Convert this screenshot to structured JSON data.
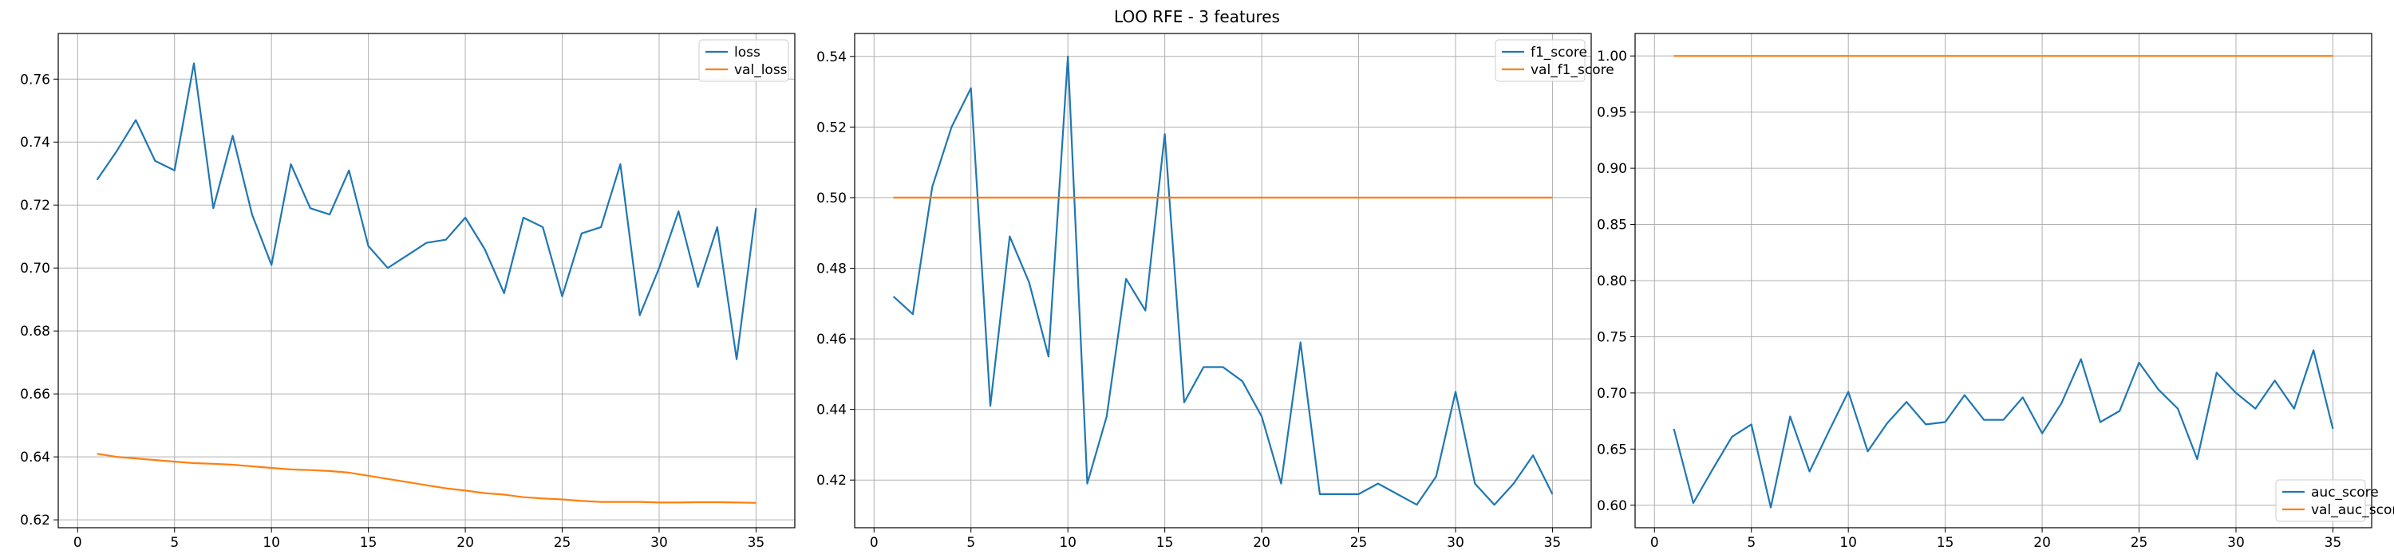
{
  "title": "LOO RFE - 3 features",
  "colors": {
    "series_1": "#1f77b4",
    "series_2": "#ff7f0e",
    "grid": "#b0b0b0"
  },
  "chart_data": [
    {
      "type": "line",
      "legend_position": "upper-right",
      "grid": true,
      "xlim": [
        -1,
        37
      ],
      "ylim": [
        0.6175,
        0.7745
      ],
      "xticks": [
        0,
        5,
        10,
        15,
        20,
        25,
        30,
        35
      ],
      "yticks": [
        0.62,
        0.64,
        0.66,
        0.68,
        0.7,
        0.72,
        0.74,
        0.76
      ],
      "ytick_decimals": 2,
      "x": [
        1,
        2,
        3,
        4,
        5,
        6,
        7,
        8,
        9,
        10,
        11,
        12,
        13,
        14,
        15,
        16,
        17,
        18,
        19,
        20,
        21,
        22,
        23,
        24,
        25,
        26,
        27,
        28,
        29,
        30,
        31,
        32,
        33,
        34,
        35
      ],
      "series": [
        {
          "name": "loss",
          "values": [
            0.728,
            0.737,
            0.747,
            0.734,
            0.731,
            0.765,
            0.719,
            0.742,
            0.717,
            0.701,
            0.733,
            0.719,
            0.717,
            0.731,
            0.707,
            0.7,
            0.704,
            0.708,
            0.709,
            0.716,
            0.706,
            0.692,
            0.716,
            0.713,
            0.691,
            0.711,
            0.713,
            0.733,
            0.685,
            0.7,
            0.718,
            0.694,
            0.713,
            0.671,
            0.719
          ]
        },
        {
          "name": "val_loss",
          "values": [
            0.641,
            0.64,
            0.6395,
            0.639,
            0.6385,
            0.638,
            0.6378,
            0.6375,
            0.637,
            0.6365,
            0.636,
            0.6358,
            0.6355,
            0.635,
            0.634,
            0.633,
            0.632,
            0.631,
            0.63,
            0.6293,
            0.6285,
            0.628,
            0.6272,
            0.6268,
            0.6265,
            0.626,
            0.6257,
            0.6257,
            0.6257,
            0.6255,
            0.6255,
            0.6256,
            0.6256,
            0.6255,
            0.6254
          ]
        }
      ]
    },
    {
      "type": "line",
      "legend_position": "upper-right",
      "grid": true,
      "xlim": [
        -1,
        37
      ],
      "ylim": [
        0.4065,
        0.5465
      ],
      "xticks": [
        0,
        5,
        10,
        15,
        20,
        25,
        30,
        35
      ],
      "yticks": [
        0.42,
        0.44,
        0.46,
        0.48,
        0.5,
        0.52,
        0.54
      ],
      "ytick_decimals": 2,
      "x": [
        1,
        2,
        3,
        4,
        5,
        6,
        7,
        8,
        9,
        10,
        11,
        12,
        13,
        14,
        15,
        16,
        17,
        18,
        19,
        20,
        21,
        22,
        23,
        24,
        25,
        26,
        27,
        28,
        29,
        30,
        31,
        32,
        33,
        34,
        35
      ],
      "series": [
        {
          "name": "f1_score",
          "values": [
            0.472,
            0.467,
            0.503,
            0.52,
            0.531,
            0.441,
            0.489,
            0.476,
            0.455,
            0.54,
            0.419,
            0.438,
            0.477,
            0.468,
            0.518,
            0.442,
            0.452,
            0.452,
            0.448,
            0.438,
            0.419,
            0.459,
            0.416,
            0.416,
            0.416,
            0.419,
            0.416,
            0.413,
            0.421,
            0.445,
            0.419,
            0.413,
            0.419,
            0.427,
            0.416
          ]
        },
        {
          "name": "val_f1_score",
          "values": [
            0.5,
            0.5,
            0.5,
            0.5,
            0.5,
            0.5,
            0.5,
            0.5,
            0.5,
            0.5,
            0.5,
            0.5,
            0.5,
            0.5,
            0.5,
            0.5,
            0.5,
            0.5,
            0.5,
            0.5,
            0.5,
            0.5,
            0.5,
            0.5,
            0.5,
            0.5,
            0.5,
            0.5,
            0.5,
            0.5,
            0.5,
            0.5,
            0.5,
            0.5,
            0.5
          ]
        }
      ]
    },
    {
      "type": "line",
      "legend_position": "lower-right",
      "grid": true,
      "xlim": [
        -1,
        37
      ],
      "ylim": [
        0.58,
        1.02
      ],
      "xticks": [
        0,
        5,
        10,
        15,
        20,
        25,
        30,
        35
      ],
      "yticks": [
        0.6,
        0.65,
        0.7,
        0.75,
        0.8,
        0.85,
        0.9,
        0.95,
        1.0
      ],
      "ytick_decimals": 2,
      "x": [
        1,
        2,
        3,
        4,
        5,
        6,
        7,
        8,
        9,
        10,
        11,
        12,
        13,
        14,
        15,
        16,
        17,
        18,
        19,
        20,
        21,
        22,
        23,
        24,
        25,
        26,
        27,
        28,
        29,
        30,
        31,
        32,
        33,
        34,
        35
      ],
      "series": [
        {
          "name": "auc_score",
          "values": [
            0.668,
            0.602,
            0.632,
            0.661,
            0.672,
            0.598,
            0.679,
            0.63,
            0.666,
            0.701,
            0.648,
            0.673,
            0.692,
            0.672,
            0.674,
            0.698,
            0.676,
            0.676,
            0.696,
            0.664,
            0.691,
            0.73,
            0.674,
            0.684,
            0.727,
            0.703,
            0.686,
            0.641,
            0.718,
            0.7,
            0.686,
            0.711,
            0.686,
            0.738,
            0.668
          ]
        },
        {
          "name": "val_auc_score",
          "values": [
            1,
            1,
            1,
            1,
            1,
            1,
            1,
            1,
            1,
            1,
            1,
            1,
            1,
            1,
            1,
            1,
            1,
            1,
            1,
            1,
            1,
            1,
            1,
            1,
            1,
            1,
            1,
            1,
            1,
            1,
            1,
            1,
            1,
            1,
            1
          ]
        }
      ]
    }
  ]
}
